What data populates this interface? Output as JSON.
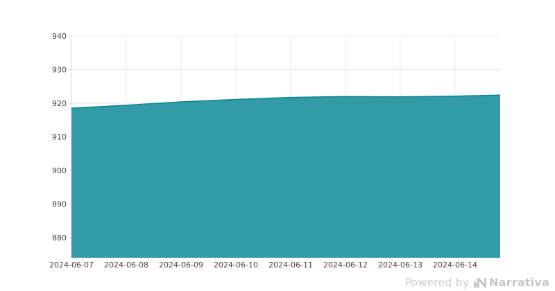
{
  "footer": {
    "powered_by": "Powered by",
    "brand": "Narrativa"
  },
  "chart_data": {
    "type": "area",
    "title": "",
    "xlabel": "",
    "ylabel": "",
    "x": [
      "2024-06-07",
      "2024-06-08",
      "2024-06-09",
      "2024-06-10",
      "2024-06-11",
      "2024-06-12",
      "2024-06-13",
      "2024-06-14"
    ],
    "series": [
      {
        "name": "value",
        "values": [
          918.5,
          919.4,
          920.4,
          921.1,
          921.7,
          922.0,
          921.9,
          922.1
        ],
        "right_edge_value": 922.4
      }
    ],
    "yticks": [
      880,
      890,
      900,
      910,
      920,
      930,
      940
    ],
    "ylim": [
      874,
      940
    ],
    "grid": true,
    "legend_position": "none",
    "colors": {
      "fill": "#339ba8",
      "line": "#0f8494",
      "grid": "#e8e8e8",
      "axis": "#d9d9d9",
      "tick_text": "#444444",
      "watermark": "#cccccc"
    }
  }
}
